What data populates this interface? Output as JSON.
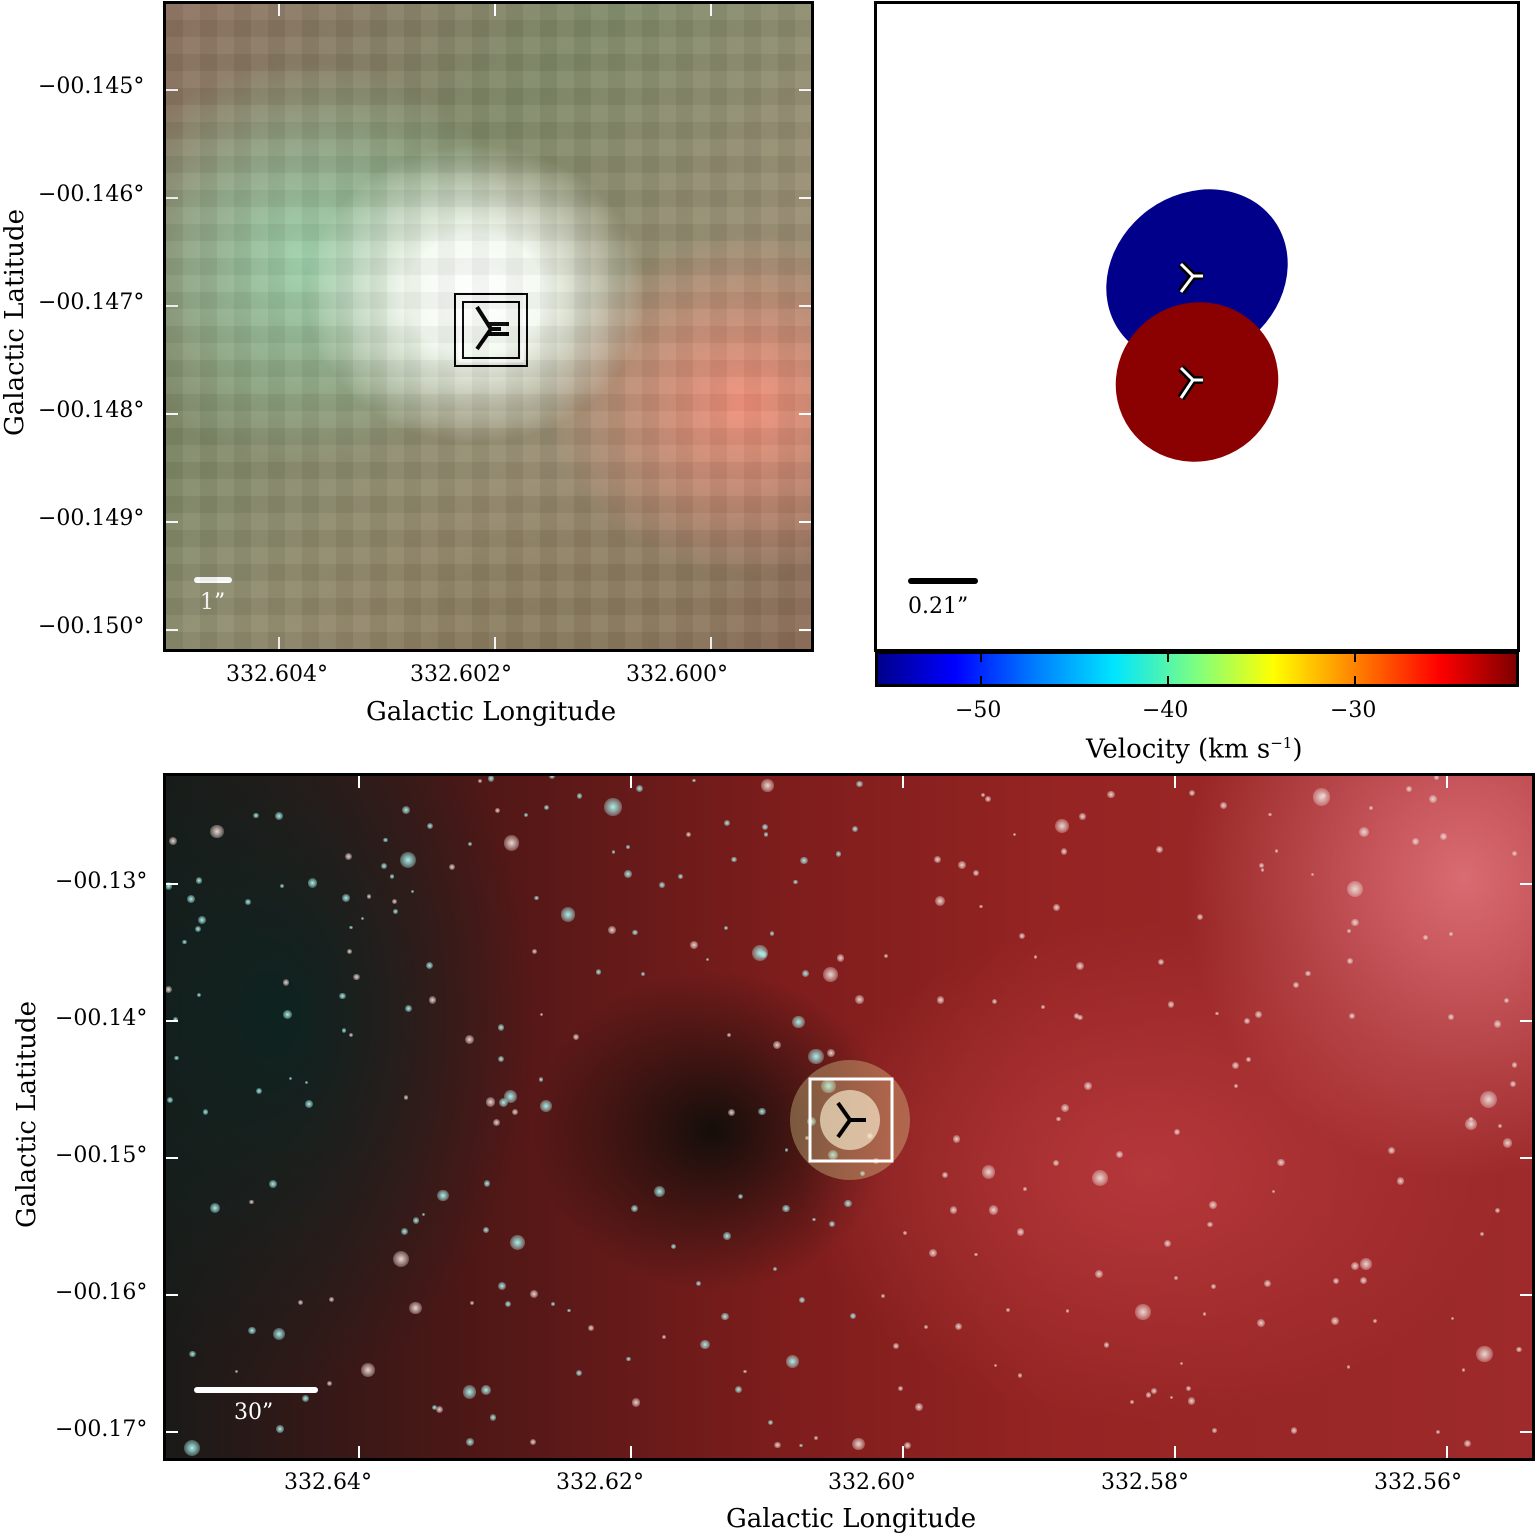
{
  "top_left": {
    "ylabel": "Galactic Latitude",
    "xlabel": "Galactic Longitude",
    "y_ticks": [
      "−00.145°",
      "−00.146°",
      "−00.147°",
      "−00.148°",
      "−00.149°",
      "−00.150°"
    ],
    "x_ticks": [
      "332.604°",
      "332.602°",
      "332.600°"
    ],
    "scale_bar": "1”"
  },
  "top_right": {
    "scale_bar": "0.21”",
    "colorbar_label": "Velocity (km s",
    "colorbar_label_sup": "−1",
    "colorbar_label_end": ")",
    "colorbar_ticks": [
      "−50",
      "−40",
      "−30"
    ],
    "blob_colors": {
      "blue": "#00008b",
      "red": "#8b0000"
    }
  },
  "bottom": {
    "ylabel": "Galactic Latitude",
    "xlabel": "Galactic Longitude",
    "y_ticks": [
      "−00.13°",
      "−00.14°",
      "−00.15°",
      "−00.16°",
      "−00.17°"
    ],
    "x_ticks": [
      "332.64°",
      "332.62°",
      "332.60°",
      "332.58°",
      "332.56°"
    ],
    "scale_bar": "30”"
  }
}
